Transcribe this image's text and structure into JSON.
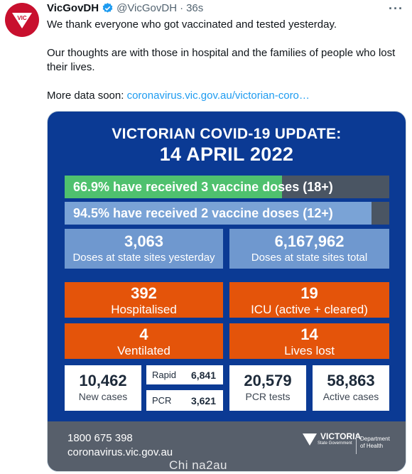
{
  "tweet": {
    "display_name": "VicGovDH",
    "handle": "@VicGovDH",
    "separator": "·",
    "time": "36s",
    "more": "···",
    "paragraphs": [
      "We thank everyone who got vaccinated and tested yesterday.",
      "Our thoughts are with those in hospital and the families of people who lost their lives."
    ],
    "more_data_prefix": "More data soon: ",
    "link_text": "coronavirus.vic.gov.au/victorian-coro…"
  },
  "card": {
    "title": "VICTORIAN COVID-19 UPDATE:",
    "date": "14 APRIL 2022",
    "vaccine_bars": [
      {
        "text": "66.9% have received 3 vaccine doses (18+)",
        "fraction": 0.669
      },
      {
        "text": "94.5% have received 2 vaccine doses (12+)",
        "fraction": 0.945
      }
    ],
    "doses": [
      {
        "value": "3,063",
        "label": "Doses at state sites yesterday"
      },
      {
        "value": "6,167,962",
        "label": "Doses at state sites total"
      }
    ],
    "hospital": [
      {
        "value": "392",
        "label": "Hospitalised"
      },
      {
        "value": "19",
        "label": "ICU (active + cleared)"
      },
      {
        "value": "4",
        "label": "Ventilated"
      },
      {
        "value": "14",
        "label": "Lives lost"
      }
    ],
    "cases": {
      "new_cases": {
        "value": "10,462",
        "label": "New cases"
      },
      "rapid": {
        "label": "Rapid",
        "value": "6,841"
      },
      "pcr": {
        "label": "PCR",
        "value": "3,621"
      },
      "pcr_tests": {
        "value": "20,579",
        "label": "PCR tests"
      },
      "active_cases": {
        "value": "58,863",
        "label": "Active cases"
      }
    },
    "footer": {
      "phone": "1800 675 398",
      "website": "coronavirus.vic.gov.au",
      "logo_text": "VICTORIA",
      "logo_sub": "State Government",
      "dept_line1": "Department",
      "dept_line2": "of Health"
    }
  },
  "watermark": "Chi na2au",
  "colors": {
    "brand_red": "#c8102e",
    "link_blue": "#1d9bf0",
    "card_navy": "#0b3a94",
    "green": "#4fc16e",
    "light_blue": "#7aa3d6",
    "orange": "#e4540a",
    "footer_grey": "#575f6b"
  },
  "icons": [
    "vic-logo-icon",
    "verified-badge-icon",
    "more-options-icon",
    "victoria-state-logo-icon"
  ]
}
